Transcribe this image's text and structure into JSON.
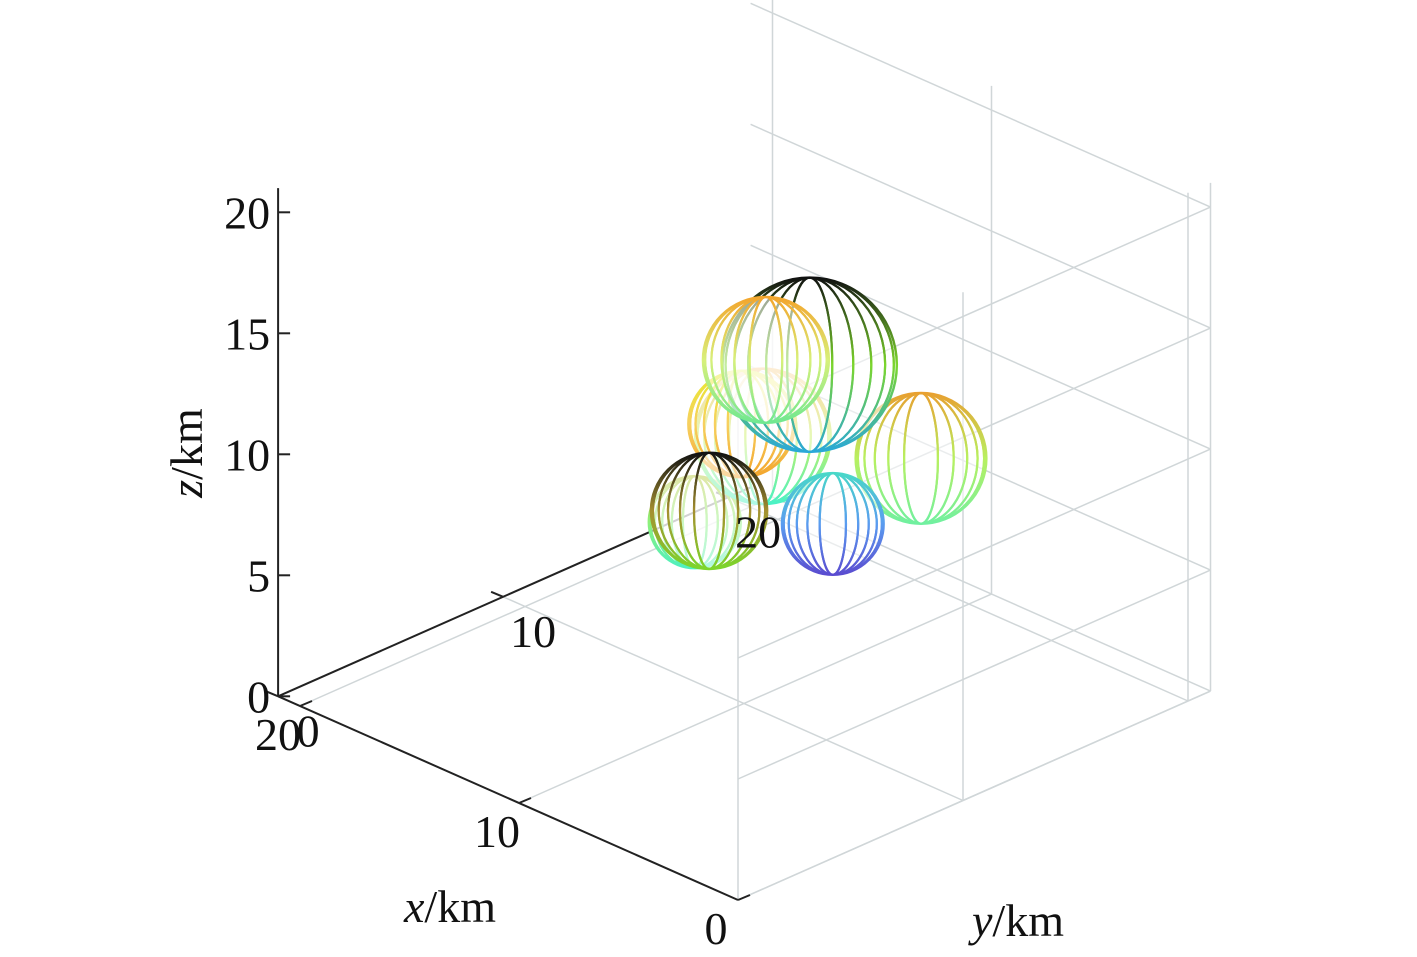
{
  "chart_data": {
    "type": "scatter3d",
    "title": "",
    "axes": {
      "x": {
        "label_var": "x",
        "label_unit": "/km",
        "ticks": [
          "0",
          "10",
          "20"
        ],
        "range": [
          0,
          20
        ]
      },
      "y": {
        "label_var": "y",
        "label_unit": "/km",
        "ticks": [
          "0",
          "10",
          "20"
        ],
        "range": [
          0,
          20
        ]
      },
      "z": {
        "label_var": "z",
        "label_unit": "/km",
        "ticks": [
          "0",
          "5",
          "10",
          "15",
          "20"
        ],
        "range": [
          0,
          20
        ]
      }
    },
    "grid": true,
    "spheres": [
      {
        "x": 3.0,
        "y": 1.0,
        "z": 14.0,
        "r": 1.9,
        "color_top": "#b7c93a",
        "color_mid": "#8ef07a",
        "color_bottom": "#4ff0c0",
        "mesh": "#8ee8a0"
      },
      {
        "x": 4.0,
        "y": 5.0,
        "z": 15.5,
        "r": 2.8,
        "color_top": "#f3a52c",
        "color_mid": "#c9f060",
        "color_bottom": "#49f2c6",
        "mesh": "#e8d070"
      },
      {
        "x": 6.0,
        "y": 6.0,
        "z": 14.8,
        "r": 2.2,
        "color_top": "#e6ea2c",
        "color_mid": "#f7d060",
        "color_bottom": "#f3a52c",
        "mesh": "#f0c850"
      },
      {
        "x": 7.0,
        "y": 10.0,
        "z": 15.2,
        "r": 3.6,
        "color_top": "#111111",
        "color_mid": "#7cd62c",
        "color_bottom": "#2aa8d8",
        "mesh": "#111111"
      },
      {
        "x": 9.0,
        "y": 10.0,
        "z": 14.6,
        "r": 2.6,
        "color_top": "#f3a52c",
        "color_mid": "#d8f07a",
        "color_bottom": "#70e890",
        "mesh": "#e8d890"
      },
      {
        "x": 8.0,
        "y": 6.5,
        "z": 10.2,
        "r": 2.4,
        "color_top": "#111111",
        "color_mid": "#a59030",
        "color_bottom": "#7cd62c",
        "mesh": "#111111"
      },
      {
        "x": 5.0,
        "y": 13.0,
        "z": 10.9,
        "r": 2.7,
        "color_top": "#e8a030",
        "color_mid": "#b8f060",
        "color_bottom": "#70f0a0",
        "mesh": "#c8e870"
      },
      {
        "x": 8.0,
        "y": 12.0,
        "z": 7.4,
        "r": 2.1,
        "color_top": "#49d8c8",
        "color_mid": "#5a9cf0",
        "color_bottom": "#5a4cd0",
        "mesh": "#80b0f0"
      }
    ]
  }
}
